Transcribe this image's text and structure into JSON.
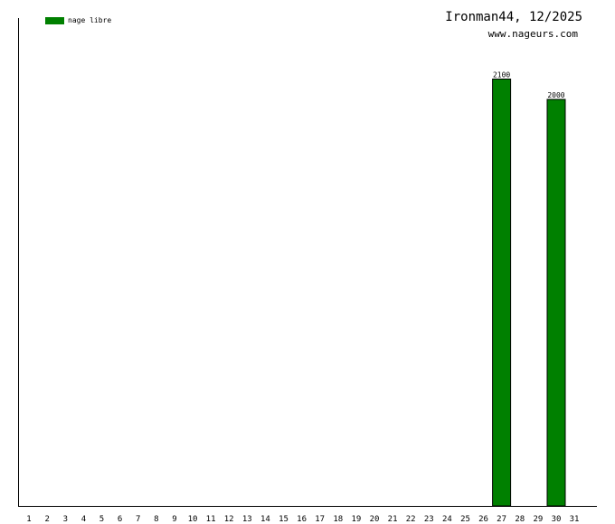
{
  "header": {
    "title": "Ironman44, 12/2025",
    "site": "www.nageurs.com"
  },
  "legend": {
    "label": "nage libre",
    "color": "#008000"
  },
  "chart_data": {
    "type": "bar",
    "title": "Ironman44, 12/2025",
    "xlabel": "",
    "ylabel": "",
    "categories": [
      "1",
      "2",
      "3",
      "4",
      "5",
      "6",
      "7",
      "8",
      "9",
      "10",
      "11",
      "12",
      "13",
      "14",
      "15",
      "16",
      "17",
      "18",
      "19",
      "20",
      "21",
      "22",
      "23",
      "24",
      "25",
      "26",
      "27",
      "28",
      "29",
      "30",
      "31"
    ],
    "series": [
      {
        "name": "nage libre",
        "color": "#008000",
        "values": [
          0,
          0,
          0,
          0,
          0,
          0,
          0,
          0,
          0,
          0,
          0,
          0,
          0,
          0,
          0,
          0,
          0,
          0,
          0,
          0,
          0,
          0,
          0,
          0,
          0,
          0,
          2100,
          0,
          0,
          2000,
          0
        ]
      }
    ],
    "ylim": [
      0,
      2400
    ],
    "grid": false,
    "legend_position": "top-left"
  }
}
